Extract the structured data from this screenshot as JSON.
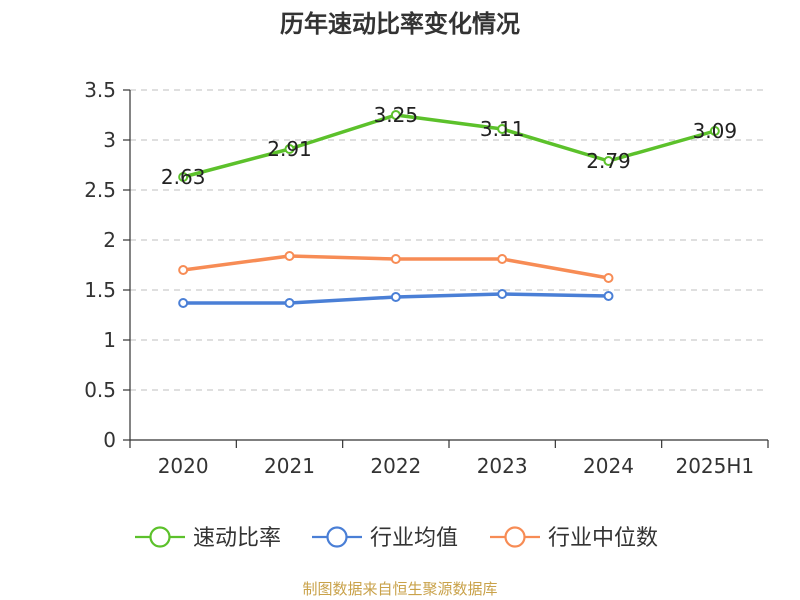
{
  "page": {
    "title": "历年速动比率变化情况",
    "source": "制图数据来自恒生聚源数据库"
  },
  "chart_data": {
    "type": "line",
    "title": "历年速动比率变化情况",
    "categories": [
      "2020",
      "2021",
      "2022",
      "2023",
      "2024",
      "2025H1"
    ],
    "ylim": [
      0,
      3.5
    ],
    "yticks": [
      "0",
      "0.5",
      "1",
      "1.5",
      "2",
      "2.5",
      "3",
      "3.5"
    ],
    "grid": true,
    "legend_position": "bottom",
    "series": [
      {
        "name": "速动比率",
        "color": "#5cc12b",
        "values": [
          2.63,
          2.91,
          3.25,
          3.11,
          2.79,
          3.09
        ],
        "labels": [
          "2.63",
          "2.91",
          "3.25",
          "3.11",
          "2.79",
          "3.09"
        ],
        "show_labels": true
      },
      {
        "name": "行业均值",
        "color": "#4a7fd6",
        "values": [
          1.37,
          1.37,
          1.43,
          1.46,
          1.44,
          null
        ],
        "show_labels": false
      },
      {
        "name": "行业中位数",
        "color": "#f78c55",
        "values": [
          1.7,
          1.84,
          1.81,
          1.81,
          1.62,
          null
        ],
        "show_labels": false
      }
    ]
  }
}
